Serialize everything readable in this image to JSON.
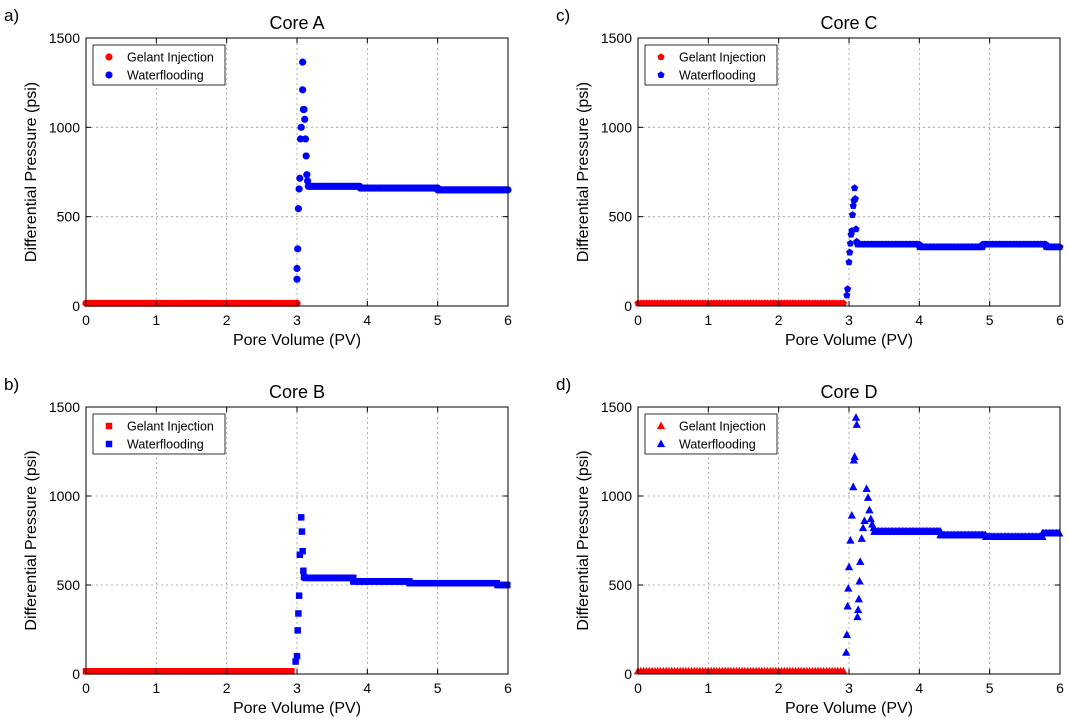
{
  "figure": {
    "panels": [
      "a)",
      "b)",
      "c)",
      "d)"
    ]
  },
  "colors": {
    "gelant": "#ff0000",
    "water": "#0000ff"
  },
  "chart_data": [
    {
      "type": "scatter",
      "panel": "a)",
      "title": "Core A",
      "xlabel": "Pore Volume (PV)",
      "ylabel": "Differential Pressure (psi)",
      "xlim": [
        0,
        6
      ],
      "ylim": [
        0,
        1500
      ],
      "xticks": [
        "0",
        "1",
        "2",
        "3",
        "4",
        "5",
        "6"
      ],
      "yticks": [
        "0",
        "500",
        "1000",
        "1500"
      ],
      "grid": true,
      "legend": "top-left",
      "marker": "circle",
      "series": [
        {
          "name": "Gelant Injection",
          "color": "#ff0000",
          "x_range": [
            0,
            3.0
          ],
          "y": 15,
          "step": 0.04
        },
        {
          "name": "Waterflooding",
          "color": "#0000ff",
          "points": [
            [
              3.0,
              150
            ],
            [
              3.0,
              210
            ],
            [
              3.01,
              320
            ],
            [
              3.02,
              545
            ],
            [
              3.03,
              655
            ],
            [
              3.04,
              715
            ],
            [
              3.05,
              935
            ],
            [
              3.06,
              1000
            ],
            [
              3.08,
              1365
            ],
            [
              3.08,
              1210
            ],
            [
              3.09,
              1100
            ],
            [
              3.1,
              1100
            ],
            [
              3.11,
              1045
            ],
            [
              3.12,
              935
            ],
            [
              3.13,
              840
            ],
            [
              3.14,
              735
            ],
            [
              3.15,
              700
            ],
            [
              3.16,
              670
            ]
          ],
          "plateaus": [
            [
              3.17,
              3.9,
              670
            ],
            [
              3.9,
              5.0,
              660
            ],
            [
              5.0,
              6.0,
              650
            ]
          ]
        }
      ]
    },
    {
      "type": "scatter",
      "panel": "b)",
      "title": "Core B",
      "xlabel": "Pore Volume (PV)",
      "ylabel": "Differential Pressure (psi)",
      "xlim": [
        0,
        6
      ],
      "ylim": [
        0,
        1500
      ],
      "xticks": [
        "0",
        "1",
        "2",
        "3",
        "4",
        "5",
        "6"
      ],
      "yticks": [
        "0",
        "500",
        "1000",
        "1500"
      ],
      "grid": true,
      "legend": "top-left",
      "marker": "square",
      "series": [
        {
          "name": "Gelant Injection",
          "color": "#ff0000",
          "x_range": [
            0,
            2.95
          ],
          "y": 15,
          "step": 0.04
        },
        {
          "name": "Waterflooding",
          "color": "#0000ff",
          "points": [
            [
              2.98,
              70
            ],
            [
              3.0,
              100
            ],
            [
              3.01,
              245
            ],
            [
              3.02,
              340
            ],
            [
              3.03,
              440
            ],
            [
              3.04,
              670
            ],
            [
              3.06,
              880
            ],
            [
              3.07,
              800
            ],
            [
              3.08,
              690
            ],
            [
              3.09,
              580
            ],
            [
              3.1,
              545
            ]
          ],
          "plateaus": [
            [
              3.12,
              3.8,
              540
            ],
            [
              3.8,
              4.6,
              520
            ],
            [
              4.6,
              5.85,
              510
            ],
            [
              5.85,
              6.0,
              500
            ]
          ]
        }
      ]
    },
    {
      "type": "scatter",
      "panel": "c)",
      "title": "Core C",
      "xlabel": "Pore Volume (PV)",
      "ylabel": "Differential Pressure (psi)",
      "xlim": [
        0,
        6
      ],
      "ylim": [
        0,
        1500
      ],
      "xticks": [
        "0",
        "1",
        "2",
        "3",
        "4",
        "5",
        "6"
      ],
      "yticks": [
        "0",
        "500",
        "1000",
        "1500"
      ],
      "grid": true,
      "legend": "top-left",
      "marker": "pentagon",
      "series": [
        {
          "name": "Gelant Injection",
          "color": "#ff0000",
          "x_range": [
            0,
            2.95
          ],
          "y": 15,
          "step": 0.04
        },
        {
          "name": "Waterflooding",
          "color": "#0000ff",
          "points": [
            [
              2.97,
              60
            ],
            [
              2.98,
              95
            ],
            [
              3.0,
              245
            ],
            [
              3.01,
              300
            ],
            [
              3.02,
              350
            ],
            [
              3.03,
              400
            ],
            [
              3.04,
              420
            ],
            [
              3.05,
              510
            ],
            [
              3.06,
              560
            ],
            [
              3.07,
              590
            ],
            [
              3.08,
              660
            ],
            [
              3.09,
              600
            ],
            [
              3.1,
              430
            ],
            [
              3.11,
              360
            ]
          ],
          "plateaus": [
            [
              3.12,
              4.0,
              345
            ],
            [
              4.0,
              4.9,
              330
            ],
            [
              4.9,
              5.8,
              345
            ],
            [
              5.8,
              6.0,
              330
            ]
          ]
        }
      ]
    },
    {
      "type": "scatter",
      "panel": "d)",
      "title": "Core D",
      "xlabel": "Pore Volume (PV)",
      "ylabel": "Differential Pressure (psi)",
      "xlim": [
        0,
        6
      ],
      "ylim": [
        0,
        1500
      ],
      "xticks": [
        "0",
        "1",
        "2",
        "3",
        "4",
        "5",
        "6"
      ],
      "yticks": [
        "0",
        "500",
        "1000",
        "1500"
      ],
      "grid": true,
      "legend": "top-left",
      "marker": "triangle",
      "series": [
        {
          "name": "Gelant Injection",
          "color": "#ff0000",
          "x_range": [
            0,
            2.95
          ],
          "y": 15,
          "step": 0.04
        },
        {
          "name": "Waterflooding",
          "color": "#0000ff",
          "points": [
            [
              2.96,
              120
            ],
            [
              2.97,
              220
            ],
            [
              2.98,
              380
            ],
            [
              2.99,
              480
            ],
            [
              3.0,
              600
            ],
            [
              3.02,
              750
            ],
            [
              3.04,
              890
            ],
            [
              3.06,
              1050
            ],
            [
              3.07,
              1200
            ],
            [
              3.08,
              1220
            ],
            [
              3.1,
              1440
            ],
            [
              3.11,
              1400
            ],
            [
              3.12,
              320
            ],
            [
              3.13,
              360
            ],
            [
              3.14,
              420
            ],
            [
              3.15,
              520
            ],
            [
              3.16,
              630
            ],
            [
              3.18,
              760
            ],
            [
              3.2,
              820
            ],
            [
              3.22,
              860
            ],
            [
              3.25,
              1040
            ],
            [
              3.27,
              990
            ],
            [
              3.29,
              920
            ],
            [
              3.31,
              870
            ],
            [
              3.33,
              840
            ],
            [
              3.35,
              820
            ]
          ],
          "plateaus": [
            [
              3.36,
              4.3,
              800
            ],
            [
              4.3,
              4.95,
              780
            ],
            [
              4.95,
              5.75,
              770
            ],
            [
              5.75,
              6.0,
              790
            ]
          ]
        }
      ]
    }
  ]
}
